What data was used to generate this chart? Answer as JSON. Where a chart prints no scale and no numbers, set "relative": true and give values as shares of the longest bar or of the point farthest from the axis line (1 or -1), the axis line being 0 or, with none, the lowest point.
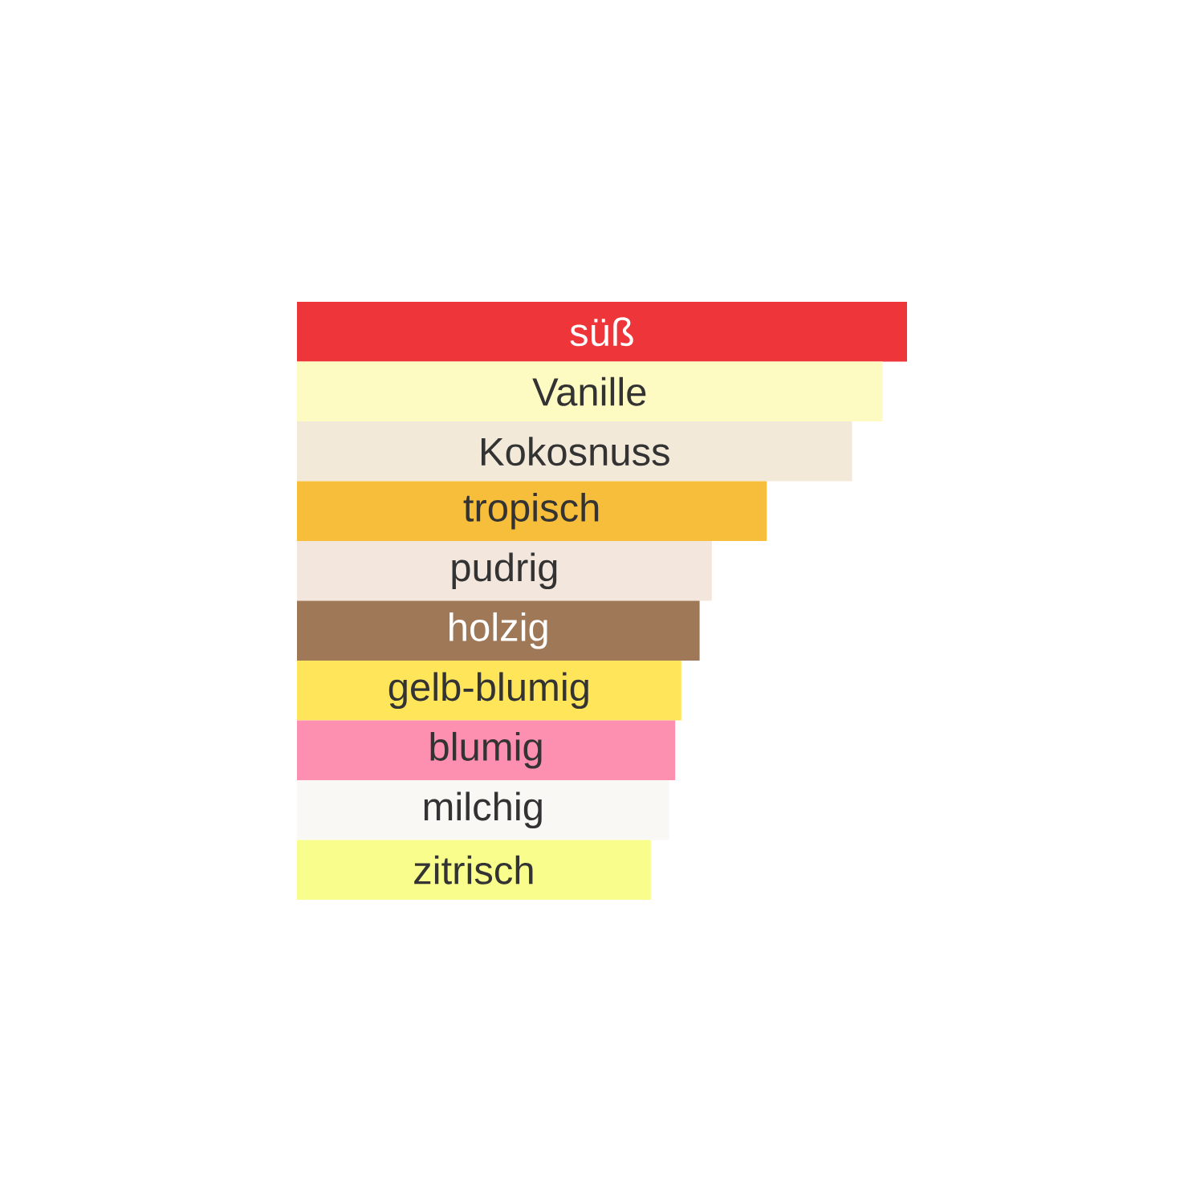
{
  "chart_data": {
    "type": "bar",
    "orientation": "horizontal",
    "relative": true,
    "tick_labels": false,
    "categories": [
      "süß",
      "Vanille",
      "Kokosnuss",
      "tropisch",
      "pudrig",
      "holzig",
      "gelb-blumig",
      "blumig",
      "milchig",
      "zitrisch"
    ],
    "values": [
      1,
      0.96,
      0.91,
      0.77,
      0.68,
      0.66,
      0.63,
      0.62,
      0.61,
      0.58
    ],
    "colors": [
      "#ee3539",
      "#fdfbc1",
      "#f2e9d8",
      "#f6be3a",
      "#f3e6dc",
      "#9e7857",
      "#fee55a",
      "#fd8fb0",
      "#f9f8f4",
      "#f9fd8c"
    ]
  }
}
